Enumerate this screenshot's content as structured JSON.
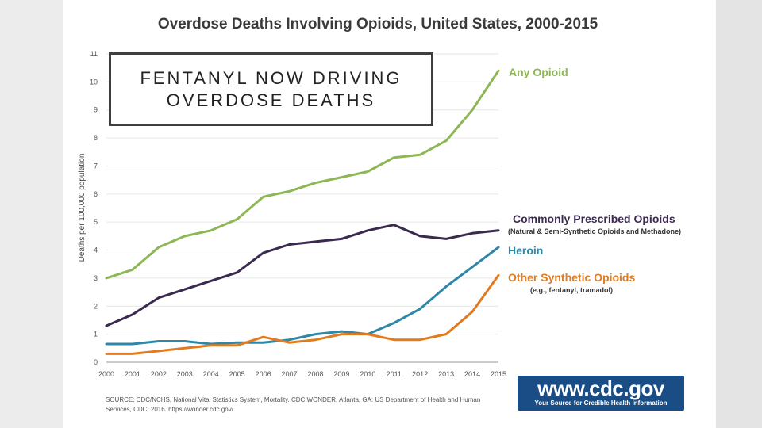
{
  "chart_data": {
    "type": "line",
    "title": "Overdose Deaths Involving Opioids, United States, 2000-2015",
    "xlabel": "",
    "ylabel": "Deaths per 100,000 population",
    "ylim": [
      0,
      11
    ],
    "yticks": [
      "0",
      "1",
      "2",
      "3",
      "4",
      "5",
      "6",
      "7",
      "8",
      "9",
      "10",
      "11"
    ],
    "x": [
      "2000",
      "2001",
      "2002",
      "2003",
      "2004",
      "2005",
      "2006",
      "2007",
      "2008",
      "2009",
      "2010",
      "2011",
      "2012",
      "2013",
      "2014",
      "2015"
    ],
    "grid": true,
    "series": [
      {
        "name": "Any Opioid",
        "color": "#8db754",
        "values": [
          3.0,
          3.3,
          4.1,
          4.5,
          4.7,
          5.1,
          5.9,
          6.1,
          6.4,
          6.6,
          6.8,
          7.3,
          7.4,
          7.9,
          9.0,
          10.4
        ]
      },
      {
        "name": "Commonly Prescribed Opioids",
        "note": "(Natural & Semi-Synthetic Opioids and Methadone)",
        "color": "#3b2a50",
        "values": [
          1.3,
          1.7,
          2.3,
          2.6,
          2.9,
          3.2,
          3.9,
          4.2,
          4.3,
          4.4,
          4.7,
          4.9,
          4.5,
          4.4,
          4.6,
          4.7
        ]
      },
      {
        "name": "Heroin",
        "color": "#2f87a8",
        "values": [
          0.65,
          0.65,
          0.75,
          0.75,
          0.65,
          0.7,
          0.7,
          0.8,
          1.0,
          1.1,
          1.0,
          1.4,
          1.9,
          2.7,
          3.4,
          4.1
        ]
      },
      {
        "name": "Other Synthetic Opioids",
        "note": "(e.g., fentanyl, tramadol)",
        "color": "#e07b20",
        "values": [
          0.3,
          0.3,
          0.4,
          0.5,
          0.6,
          0.6,
          0.9,
          0.7,
          0.8,
          1.0,
          1.0,
          0.8,
          0.8,
          1.0,
          1.8,
          3.1
        ]
      }
    ],
    "source": "SOURCE: CDC/NCHS, National Vital Statistics System, Mortality. CDC WONDER, Atlanta, GA: US Department of Health and Human Services, CDC; 2016. https://wonder.cdc.gov/."
  },
  "overlay": {
    "text": "FENTANYL NOW DRIVING\nOVERDOSE DEATHS"
  },
  "logo": {
    "url": "www.cdc.gov",
    "tagline": "Your Source for Credible Health Information"
  }
}
